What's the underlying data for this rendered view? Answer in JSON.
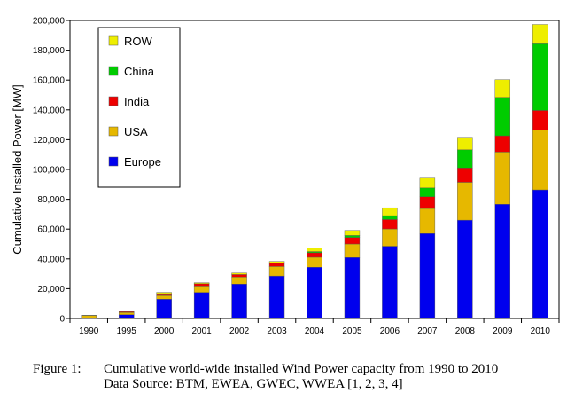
{
  "chart_data": {
    "type": "bar",
    "stacked": true,
    "title": "",
    "xlabel": "",
    "ylabel": "Cumulative Installed Power [MW]",
    "ylim": [
      0,
      200000
    ],
    "yticks": [
      "0",
      "20,000",
      "40,000",
      "60,000",
      "80,000",
      "100,000",
      "120,000",
      "140,000",
      "160,000",
      "180,000",
      "200,000"
    ],
    "grid": false,
    "legend_position": "top-left",
    "categories": [
      "1990",
      "1995",
      "2000",
      "2001",
      "2002",
      "2003",
      "2004",
      "2005",
      "2006",
      "2007",
      "2008",
      "2009",
      "2010"
    ],
    "series": [
      {
        "name": "Europe",
        "color": "#0000ee",
        "values": [
          400,
          2500,
          12900,
          17500,
          23100,
          28500,
          34400,
          40900,
          48500,
          57000,
          66000,
          76600,
          86300
        ]
      },
      {
        "name": "USA",
        "color": "#e6b800",
        "values": [
          1500,
          1600,
          2500,
          4300,
          4700,
          6400,
          6700,
          9100,
          11600,
          16800,
          25400,
          35100,
          40200
        ]
      },
      {
        "name": "India",
        "color": "#ee0000",
        "values": [
          0,
          500,
          1200,
          1500,
          1700,
          2100,
          3000,
          4400,
          6300,
          7900,
          9600,
          10900,
          13100
        ]
      },
      {
        "name": "China",
        "color": "#00cc00",
        "values": [
          0,
          0,
          0,
          0,
          0,
          0,
          800,
          1300,
          2600,
          5900,
          12200,
          25800,
          44700
        ]
      },
      {
        "name": "ROW",
        "color": "#eeee00",
        "values": [
          300,
          300,
          900,
          700,
          1000,
          1300,
          2400,
          3400,
          5300,
          6600,
          8400,
          11900,
          13000
        ]
      }
    ]
  },
  "caption": {
    "number": "Figure 1:",
    "line1": "Cumulative world-wide installed Wind Power capacity from 1990 to 2010",
    "line2": "Data Source: BTM, EWEA, GWEC, WWEA [1, 2, 3, 4]"
  }
}
